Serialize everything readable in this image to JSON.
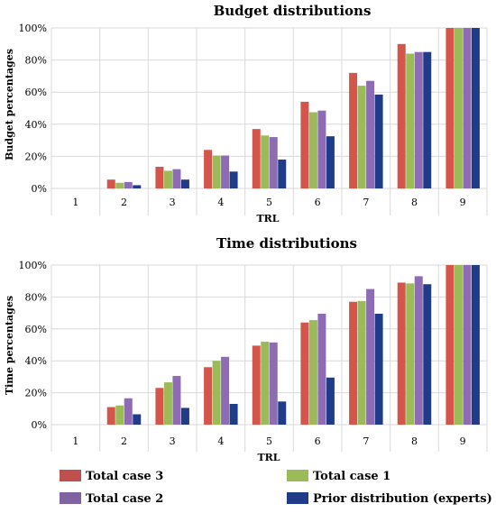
{
  "chart_data": [
    {
      "type": "bar",
      "title": "Budget distributions",
      "xlabel": "TRL",
      "ylabel": "Budget percentages",
      "categories": [
        "1",
        "2",
        "3",
        "4",
        "5",
        "6",
        "7",
        "8",
        "9"
      ],
      "yticks": [
        "0%",
        "20%",
        "40%",
        "60%",
        "80%",
        "100%"
      ],
      "ylim": [
        0,
        100
      ],
      "grid": true,
      "series": [
        {
          "name": "Total case 3",
          "values": [
            0,
            5.5,
            13.5,
            24,
            37,
            54,
            72,
            90,
            100
          ]
        },
        {
          "name": "Total case 1",
          "values": [
            0,
            3.5,
            11,
            20.5,
            33,
            47.5,
            64,
            84,
            100
          ]
        },
        {
          "name": "Total case 2",
          "values": [
            0,
            4,
            12,
            20.5,
            32,
            48.5,
            67,
            85,
            100
          ]
        },
        {
          "name": "Prior distribution (experts)",
          "values": [
            0,
            2,
            5.5,
            10.5,
            18,
            32.5,
            58.5,
            85,
            100
          ]
        }
      ]
    },
    {
      "type": "bar",
      "title": "Time distributions",
      "xlabel": "TRL",
      "ylabel": "Time percentages",
      "categories": [
        "1",
        "2",
        "3",
        "4",
        "5",
        "6",
        "7",
        "8",
        "9"
      ],
      "yticks": [
        "0%",
        "20%",
        "40%",
        "60%",
        "80%",
        "100%"
      ],
      "ylim": [
        0,
        100
      ],
      "grid": true,
      "series": [
        {
          "name": "Total case 3",
          "values": [
            0,
            11,
            23,
            36,
            49.5,
            64,
            77,
            89,
            100
          ]
        },
        {
          "name": "Total case 1",
          "values": [
            0,
            12,
            26.5,
            40,
            52,
            65.5,
            77.5,
            88.5,
            100
          ]
        },
        {
          "name": "Total case 2",
          "values": [
            0,
            16.5,
            30.5,
            42.5,
            51.5,
            69.5,
            85,
            93,
            100
          ]
        },
        {
          "name": "Prior distribution (experts)",
          "values": [
            0,
            6.5,
            10.5,
            13,
            14.5,
            29.5,
            69.5,
            88,
            100
          ]
        }
      ]
    }
  ],
  "legend": {
    "placement": "bottom",
    "items": [
      {
        "label": "Total case 3",
        "color": "#c0504d"
      },
      {
        "label": "Total case 1",
        "color": "#9bbb59"
      },
      {
        "label": "Total case 2",
        "color": "#8064a2"
      },
      {
        "label": "Prior distribution (experts)",
        "color": "#1f3c88"
      }
    ]
  },
  "colors": {
    "series": [
      "#d4554a",
      "#9bbb59",
      "#8e6bb5",
      "#1f3c88"
    ],
    "grid": "#d9d9d9"
  }
}
